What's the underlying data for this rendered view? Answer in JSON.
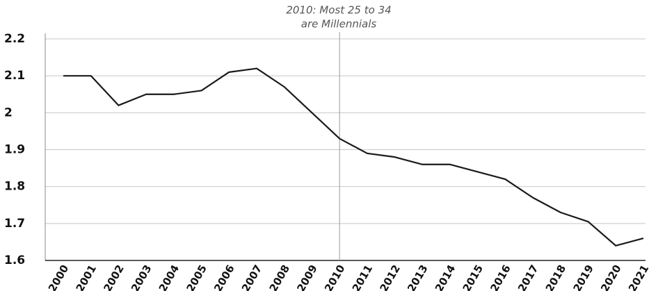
{
  "chart_data": {
    "type": "line",
    "annotation": {
      "text": [
        "2010: Most 25 to 34",
        "are Millennials"
      ],
      "x": "2010"
    },
    "categories": [
      "2000",
      "2001",
      "2002",
      "2003",
      "2004",
      "2005",
      "2006",
      "2007",
      "2008",
      "2009",
      "2010",
      "2011",
      "2012",
      "2013",
      "2014",
      "2015",
      "2016",
      "2017",
      "2018",
      "2019",
      "2020",
      "2021"
    ],
    "values": [
      2.1,
      2.1,
      2.02,
      2.05,
      2.05,
      2.06,
      2.11,
      2.12,
      2.07,
      2.0,
      1.93,
      1.89,
      1.88,
      1.86,
      1.86,
      1.84,
      1.82,
      1.77,
      1.73,
      1.705,
      1.64,
      1.66
    ],
    "color": "#1a1a1a",
    "ylim": [
      1.6,
      2.2
    ],
    "yticks": [
      1.6,
      1.7,
      1.8,
      1.9,
      2,
      2.1,
      2.2
    ],
    "grid": true
  }
}
